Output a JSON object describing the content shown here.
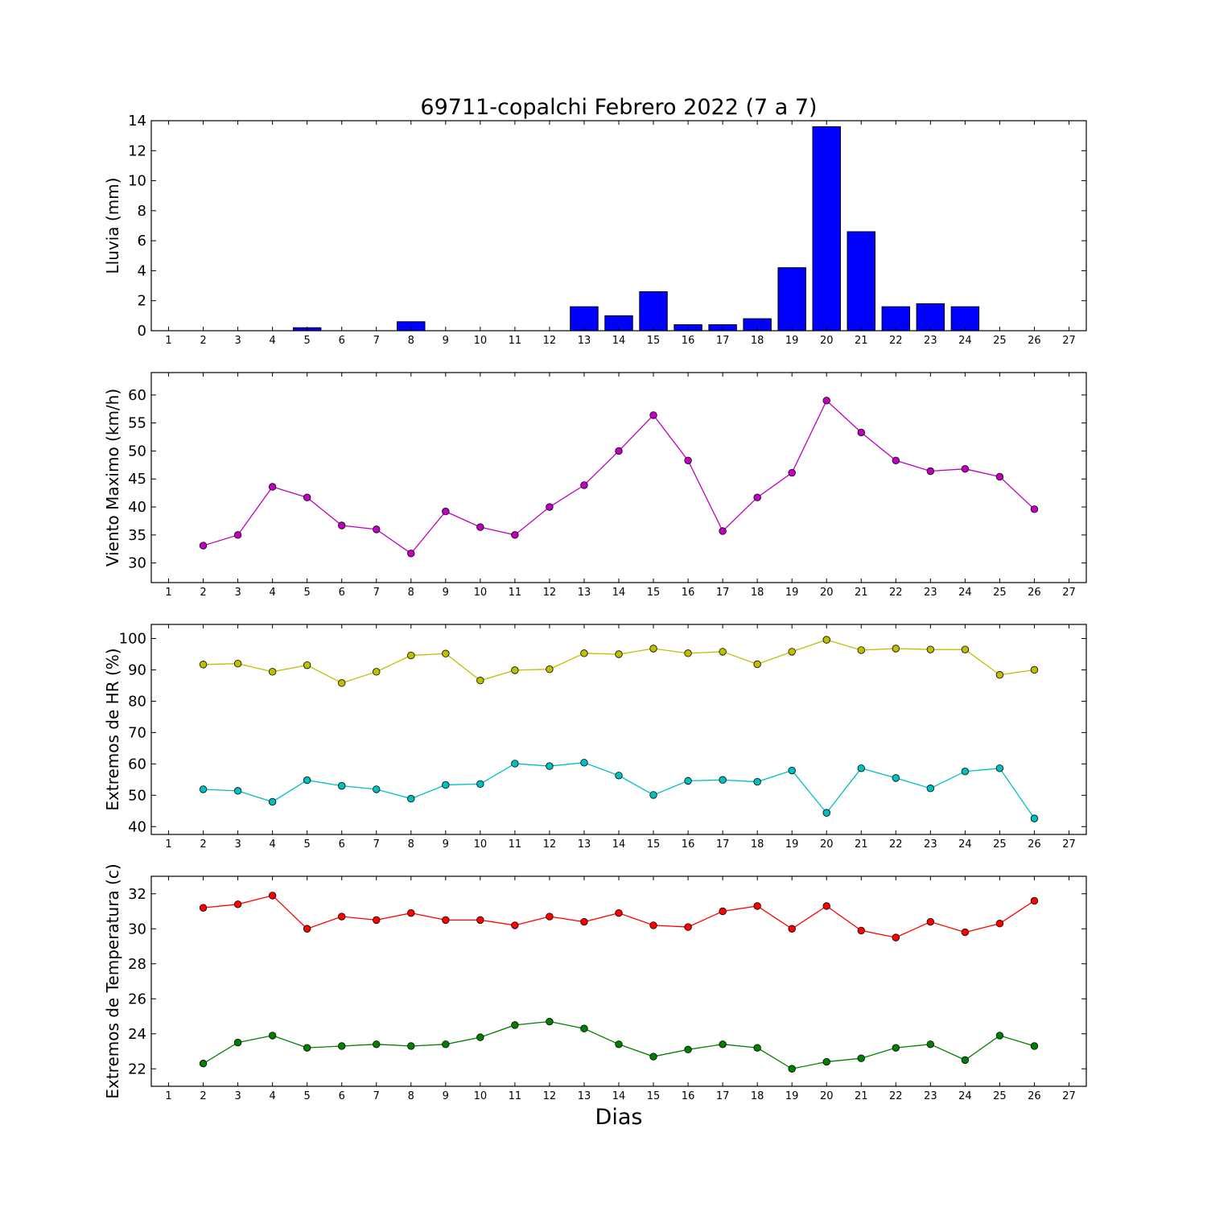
{
  "title": "69711-copalchi Febrero 2022  (7 a 7)",
  "xlabel": "Dias",
  "x_ticks": [
    "1",
    "2",
    "3",
    "4",
    "5",
    "6",
    "7",
    "8",
    "9",
    "10",
    "11",
    "12",
    "13",
    "14",
    "15",
    "16",
    "17",
    "18",
    "19",
    "20",
    "21",
    "22",
    "23",
    "24",
    "25",
    "26",
    "27"
  ],
  "chart_data": [
    {
      "type": "bar",
      "ylabel": "Lluvia (mm)",
      "xlim": [
        0.5,
        27.5
      ],
      "ylim": [
        0,
        14
      ],
      "yticks": [
        0,
        2,
        4,
        6,
        8,
        10,
        12,
        14
      ],
      "color": "#0000ff",
      "x": [
        2,
        3,
        4,
        5,
        6,
        7,
        8,
        9,
        10,
        11,
        12,
        13,
        14,
        15,
        16,
        17,
        18,
        19,
        20,
        21,
        22,
        23,
        24,
        25,
        26
      ],
      "values": [
        0,
        0,
        0,
        0.2,
        0,
        0,
        0.6,
        0,
        0,
        0,
        0,
        1.6,
        1.0,
        2.6,
        0.4,
        0.4,
        0.8,
        4.2,
        13.6,
        6.6,
        1.6,
        1.8,
        1.6,
        0,
        0
      ]
    },
    {
      "type": "line",
      "ylabel": "Viento Maximo (km/h)",
      "xlim": [
        0.5,
        27.5
      ],
      "ylim": [
        26.5,
        64
      ],
      "yticks": [
        30,
        35,
        40,
        45,
        50,
        55,
        60
      ],
      "x": [
        2,
        3,
        4,
        5,
        6,
        7,
        8,
        9,
        10,
        11,
        12,
        13,
        14,
        15,
        16,
        17,
        18,
        19,
        20,
        21,
        22,
        23,
        24,
        25,
        26
      ],
      "series": [
        {
          "color": "#bf00bf",
          "values": [
            33.1,
            35.0,
            43.6,
            41.7,
            36.7,
            36.0,
            31.7,
            39.2,
            36.4,
            35.0,
            40.0,
            43.9,
            50.0,
            56.4,
            48.3,
            35.7,
            41.7,
            46.1,
            59.0,
            53.3,
            48.3,
            46.4,
            46.8,
            45.4,
            39.6
          ]
        }
      ]
    },
    {
      "type": "line",
      "ylabel": "Extremos de HR (%)",
      "xlim": [
        0.5,
        27.5
      ],
      "ylim": [
        37.5,
        104.5
      ],
      "yticks": [
        40,
        50,
        60,
        70,
        80,
        90,
        100
      ],
      "x": [
        2,
        3,
        4,
        5,
        6,
        7,
        8,
        9,
        10,
        11,
        12,
        13,
        14,
        15,
        16,
        17,
        18,
        19,
        20,
        21,
        22,
        23,
        24,
        25,
        26
      ],
      "series": [
        {
          "color": "#bfbf00",
          "values": [
            91.7,
            92.0,
            89.4,
            91.5,
            85.8,
            89.4,
            94.6,
            95.2,
            86.6,
            89.9,
            90.2,
            95.3,
            95.0,
            96.8,
            95.3,
            95.8,
            91.8,
            95.8,
            99.6,
            96.3,
            96.8,
            96.5,
            96.5,
            88.4,
            90.0
          ]
        },
        {
          "color": "#00bfbf",
          "values": [
            51.9,
            51.4,
            47.9,
            54.8,
            53.0,
            51.9,
            48.9,
            53.3,
            53.6,
            60.1,
            59.3,
            60.4,
            56.3,
            50.1,
            54.6,
            54.9,
            54.3,
            57.9,
            44.4,
            58.6,
            55.5,
            52.2,
            57.6,
            58.6,
            42.6
          ]
        }
      ]
    },
    {
      "type": "line",
      "ylabel": "Extremos de Temperatura (c)",
      "xlim": [
        0.5,
        27.5
      ],
      "ylim": [
        21,
        33
      ],
      "yticks": [
        22,
        24,
        26,
        28,
        30,
        32
      ],
      "x": [
        2,
        3,
        4,
        5,
        6,
        7,
        8,
        9,
        10,
        11,
        12,
        13,
        14,
        15,
        16,
        17,
        18,
        19,
        20,
        21,
        22,
        23,
        24,
        25,
        26
      ],
      "series": [
        {
          "color": "#ff0000",
          "values": [
            31.2,
            31.4,
            31.9,
            30.0,
            30.7,
            30.5,
            30.9,
            30.5,
            30.5,
            30.2,
            30.7,
            30.4,
            30.9,
            30.2,
            30.1,
            31.0,
            31.3,
            30.0,
            31.3,
            29.9,
            29.5,
            30.4,
            29.8,
            30.3,
            31.6
          ]
        },
        {
          "color": "#008000",
          "values": [
            22.3,
            23.5,
            23.9,
            23.2,
            23.3,
            23.4,
            23.3,
            23.4,
            23.8,
            24.5,
            24.7,
            24.3,
            23.4,
            22.7,
            23.1,
            23.4,
            23.2,
            22.0,
            22.4,
            22.6,
            23.2,
            23.4,
            22.5,
            23.9,
            23.3
          ]
        }
      ]
    }
  ]
}
